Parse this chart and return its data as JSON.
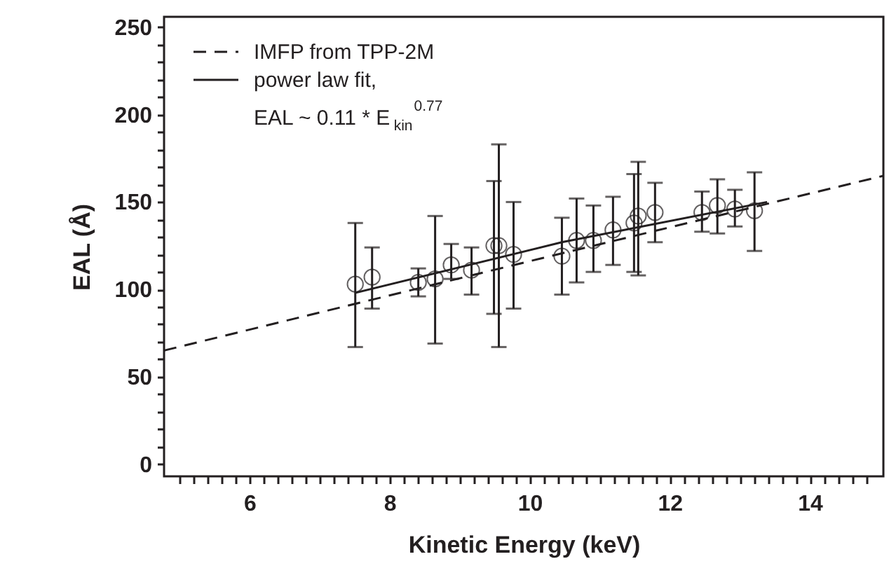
{
  "chart_data": {
    "type": "scatter",
    "xlabel": "Kinetic Energy (keV)",
    "ylabel": "EAL (Å)",
    "xlim": [
      4.78,
      15.05
    ],
    "ylim": [
      -7,
      256
    ],
    "xticks": [
      {
        "value": 5.0,
        "label": null
      },
      {
        "value": 5.2,
        "label": null
      },
      {
        "value": 5.4,
        "label": null
      },
      {
        "value": 5.6,
        "label": null
      },
      {
        "value": 5.8,
        "label": null
      },
      6,
      {
        "value": 6.2,
        "label": null
      },
      {
        "value": 6.4,
        "label": null
      },
      {
        "value": 6.6,
        "label": null
      },
      {
        "value": 6.8,
        "label": null
      },
      {
        "value": 7.0,
        "label": null
      },
      {
        "value": 7.2,
        "label": null
      },
      {
        "value": 7.4,
        "label": null
      },
      {
        "value": 7.6,
        "label": null
      },
      {
        "value": 7.8,
        "label": null
      },
      8,
      {
        "value": 8.2,
        "label": null
      },
      {
        "value": 8.4,
        "label": null
      },
      {
        "value": 8.6,
        "label": null
      },
      {
        "value": 8.8,
        "label": null
      },
      {
        "value": 9.0,
        "label": null
      },
      {
        "value": 9.2,
        "label": null
      },
      {
        "value": 9.4,
        "label": null
      },
      {
        "value": 9.6,
        "label": null
      },
      {
        "value": 9.8,
        "label": null
      },
      10,
      {
        "value": 10.2,
        "label": null
      },
      {
        "value": 10.4,
        "label": null
      },
      {
        "value": 10.6,
        "label": null
      },
      {
        "value": 10.8,
        "label": null
      },
      {
        "value": 11.0,
        "label": null
      },
      {
        "value": 11.2,
        "label": null
      },
      {
        "value": 11.4,
        "label": null
      },
      {
        "value": 11.6,
        "label": null
      },
      {
        "value": 11.8,
        "label": null
      },
      12,
      {
        "value": 12.2,
        "label": null
      },
      {
        "value": 12.4,
        "label": null
      },
      {
        "value": 12.6,
        "label": null
      },
      {
        "value": 12.8,
        "label": null
      },
      {
        "value": 13.0,
        "label": null
      },
      {
        "value": 13.2,
        "label": null
      },
      {
        "value": 13.4,
        "label": null
      },
      {
        "value": 13.6,
        "label": null
      },
      {
        "value": 13.8,
        "label": null
      },
      14,
      {
        "value": 14.2,
        "label": null
      },
      {
        "value": 14.4,
        "label": null
      },
      {
        "value": 14.6,
        "label": null
      },
      {
        "value": 14.8,
        "label": null
      }
    ],
    "yticks": [
      0,
      {
        "value": 10,
        "label": null
      },
      {
        "value": 20,
        "label": null
      },
      {
        "value": 30,
        "label": null
      },
      {
        "value": 40,
        "label": null
      },
      50,
      {
        "value": 60,
        "label": null
      },
      {
        "value": 70,
        "label": null
      },
      {
        "value": 80,
        "label": null
      },
      {
        "value": 90,
        "label": null
      },
      100,
      {
        "value": 110,
        "label": null
      },
      {
        "value": 120,
        "label": null
      },
      {
        "value": 130,
        "label": null
      },
      {
        "value": 140,
        "label": null
      },
      150,
      {
        "value": 160,
        "label": null
      },
      {
        "value": 170,
        "label": null
      },
      {
        "value": 180,
        "label": null
      },
      {
        "value": 190,
        "label": null
      },
      200,
      {
        "value": 210,
        "label": null
      },
      {
        "value": 220,
        "label": null
      },
      {
        "value": 230,
        "label": null
      },
      {
        "value": 240,
        "label": null
      },
      250
    ],
    "grid": false,
    "legend": "top left",
    "annotations": [
      "EAL ~ 0.11 * E$_{kin}$$^{0.77}$"
    ],
    "series": [
      {
        "type": "scatter",
        "color": "#231f20",
        "marker": "circle",
        "x": [
          7.51,
          7.75,
          8.41,
          8.65,
          8.88,
          9.17,
          9.49,
          9.56,
          9.77,
          10.46,
          10.67,
          10.91,
          11.19,
          11.49,
          11.55,
          11.79,
          12.46,
          12.68,
          12.93,
          13.21
        ],
        "values": [
          103,
          107,
          104,
          106,
          114,
          111,
          125,
          125,
          120,
          119,
          128,
          128,
          134,
          138,
          142,
          144,
          144,
          148,
          146,
          145
        ],
        "errors": [
          [
            67,
            138
          ],
          [
            89,
            124
          ],
          [
            96,
            112
          ],
          [
            69,
            142
          ],
          [
            106,
            126
          ],
          [
            97,
            124
          ],
          [
            86,
            162
          ],
          [
            67,
            183
          ],
          [
            89,
            150
          ],
          [
            97,
            141
          ],
          [
            104,
            152
          ],
          [
            110,
            148
          ],
          [
            114,
            153
          ],
          [
            110,
            166
          ],
          [
            108,
            173
          ],
          [
            127,
            161
          ],
          [
            133,
            156
          ],
          [
            132,
            163
          ],
          [
            136,
            157
          ],
          [
            122,
            167
          ]
        ]
      },
      {
        "type": "line",
        "name": "IMFP from TPP-2M",
        "color": "#231f20",
        "line_style": "dashed",
        "x": [
          4.78,
          10.19,
          15.05
        ],
        "values": [
          65,
          118,
          165
        ]
      },
      {
        "type": "line",
        "name": "power law fit,",
        "color": "#231f20",
        "line_style": "solid",
        "x": [
          7.51,
          10.46,
          13.39
        ],
        "values": [
          98,
          127,
          150
        ]
      }
    ]
  }
}
